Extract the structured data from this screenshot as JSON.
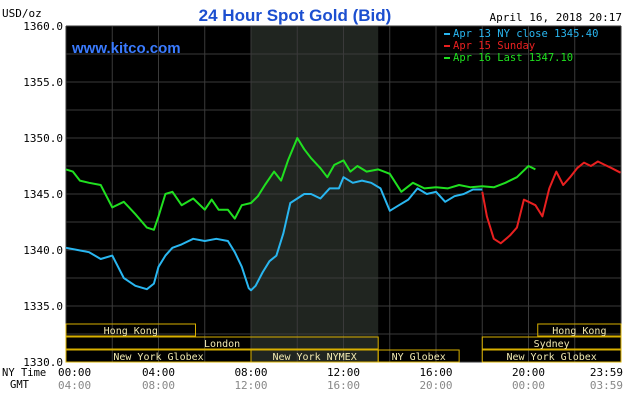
{
  "chart_data": {
    "type": "line",
    "title": "24 Hour Spot Gold (Bid)",
    "date_label": "April 16, 2018 20:17",
    "watermark": "www.kitco.com",
    "ylabel": "USD/oz",
    "ylim": [
      1330,
      1360
    ],
    "yticks": [
      "1330.0",
      "1335.0",
      "1340.0",
      "1345.0",
      "1350.0",
      "1355.0",
      "1360.0"
    ],
    "xlim": [
      0,
      24
    ],
    "xaxis_labels": {
      "row1_name": "NY Time",
      "row2_name": "GMT",
      "ny_time": [
        "00:00",
        "04:00",
        "08:00",
        "12:00",
        "16:00",
        "20:00",
        "23:59"
      ],
      "gmt": [
        "04:00",
        "08:00",
        "12:00",
        "16:00",
        "20:00",
        "00:00",
        "03:59"
      ]
    },
    "shaded_region": {
      "start": 8,
      "end": 13.5
    },
    "grid": true,
    "legend_position": "top-right",
    "colors": {
      "background": "#000000",
      "title": "#1c4fd0",
      "grid": "#3a3a3a",
      "axis_text": "#000000",
      "shade": "#202520",
      "market_box": "#f0e8b0",
      "market_border": "#d8b000",
      "blue": "#29b6f0",
      "red": "#e82020",
      "green": "#20e020"
    },
    "legend": [
      {
        "label": "Apr 13 NY close 1345.40",
        "color": "#29b6f0"
      },
      {
        "label": "Apr 15 Sunday",
        "color": "#e82020"
      },
      {
        "label": "Apr 16 Last 1347.10",
        "color": "#20e020"
      }
    ],
    "series": [
      {
        "color": "#20e020",
        "x": [
          0,
          0.3,
          0.6,
          1,
          1.5,
          2,
          2.5,
          3,
          3.5,
          3.8,
          4,
          4.3,
          4.6,
          5,
          5.5,
          6,
          6.3,
          6.6,
          7,
          7.3,
          7.6,
          8,
          8.3,
          8.6,
          9,
          9.3,
          9.6,
          10,
          10.3,
          10.6,
          11,
          11.3,
          11.6,
          12,
          12.3,
          12.6,
          13,
          13.5,
          14,
          14.5,
          15,
          15.5,
          16,
          16.5,
          17,
          17.5,
          18,
          18.5,
          19,
          19.5,
          20,
          20.3
        ],
        "y": [
          1347.2,
          1347.0,
          1346.2,
          1346.0,
          1345.8,
          1343.8,
          1344.3,
          1343.2,
          1342.0,
          1341.8,
          1343.0,
          1345.0,
          1345.2,
          1344.0,
          1344.6,
          1343.6,
          1344.5,
          1343.6,
          1343.6,
          1342.8,
          1344.0,
          1344.2,
          1344.8,
          1345.8,
          1347.0,
          1346.2,
          1348.0,
          1350.0,
          1349.0,
          1348.2,
          1347.3,
          1346.5,
          1347.6,
          1348.0,
          1347.0,
          1347.5,
          1347.0,
          1347.2,
          1346.8,
          1345.2,
          1346.0,
          1345.5,
          1345.6,
          1345.5,
          1345.8,
          1345.6,
          1345.7,
          1345.6,
          1346.0,
          1346.5,
          1347.5,
          1347.2
        ]
      },
      {
        "color": "#29b6f0",
        "x": [
          0,
          0.5,
          1,
          1.5,
          2,
          2.5,
          3,
          3.5,
          3.8,
          4,
          4.3,
          4.6,
          5,
          5.5,
          6,
          6.5,
          7,
          7.3,
          7.6,
          7.9,
          8,
          8.2,
          8.5,
          8.8,
          9.1,
          9.4,
          9.7,
          10,
          10.3,
          10.6,
          11,
          11.4,
          11.8,
          12,
          12.4,
          12.8,
          13.2,
          13.6,
          14,
          14.4,
          14.8,
          15.2,
          15.6,
          16,
          16.4,
          16.8,
          17.2,
          17.6,
          18
        ],
        "y": [
          1340.2,
          1340.0,
          1339.8,
          1339.2,
          1339.5,
          1337.5,
          1336.8,
          1336.5,
          1337.0,
          1338.5,
          1339.5,
          1340.2,
          1340.5,
          1341.0,
          1340.8,
          1341.0,
          1340.8,
          1339.8,
          1338.5,
          1336.6,
          1336.4,
          1336.8,
          1338.0,
          1339.0,
          1339.5,
          1341.5,
          1344.2,
          1344.6,
          1345.0,
          1345.0,
          1344.6,
          1345.5,
          1345.5,
          1346.5,
          1346.0,
          1346.2,
          1346.0,
          1345.5,
          1343.5,
          1344.0,
          1344.5,
          1345.5,
          1345.0,
          1345.2,
          1344.3,
          1344.8,
          1345.0,
          1345.4,
          1345.4
        ]
      },
      {
        "color": "#e82020",
        "x": [
          18,
          18.2,
          18.5,
          18.8,
          19.2,
          19.5,
          19.8,
          20,
          20.3,
          20.6,
          20.9,
          21.2,
          21.5,
          21.8,
          22.1,
          22.4,
          22.7,
          23,
          23.3,
          23.6,
          23.98
        ],
        "y": [
          1345.2,
          1343.0,
          1341.0,
          1340.6,
          1341.3,
          1342.0,
          1344.5,
          1344.3,
          1344.0,
          1343.0,
          1345.5,
          1347.0,
          1345.8,
          1346.5,
          1347.3,
          1347.8,
          1347.5,
          1347.9,
          1347.6,
          1347.3,
          1346.9
        ]
      }
    ],
    "sessions": [
      {
        "name": "Hong Kong",
        "start": 0,
        "end": 5.6,
        "row": 0
      },
      {
        "name": "London",
        "start": 0,
        "end": 13.5,
        "row": 1
      },
      {
        "name": "New York Globex",
        "start": 0,
        "end": 8.0,
        "row": 2
      },
      {
        "name": "New York NYMEX",
        "start": 8.0,
        "end": 13.5,
        "row": 2
      },
      {
        "name": "NY Globex",
        "start": 13.5,
        "end": 17.0,
        "row": 2
      },
      {
        "name": "Hong Kong",
        "start": 20.4,
        "end": 24,
        "row": 0
      },
      {
        "name": "Sydney",
        "start": 18.0,
        "end": 24,
        "row": 1
      },
      {
        "name": "New York Globex",
        "start": 18.0,
        "end": 24,
        "row": 2
      }
    ]
  }
}
